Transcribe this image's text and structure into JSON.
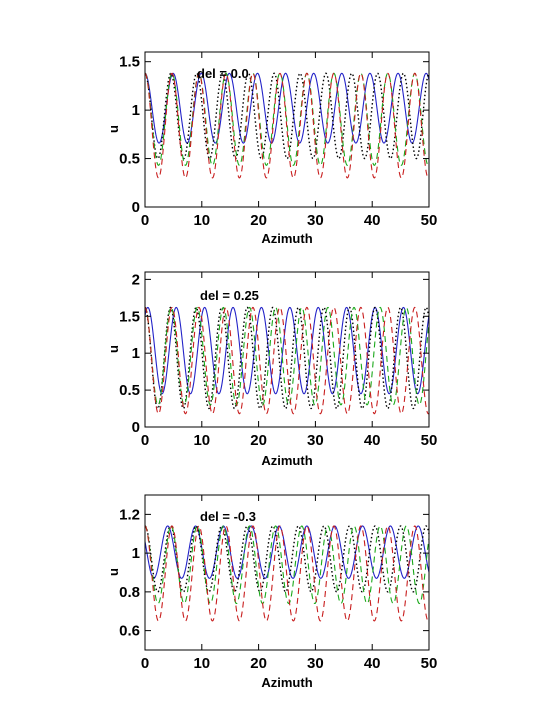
{
  "chart_data": [
    {
      "type": "line",
      "annotation": "del = 0.0",
      "xlabel": "Azimuth",
      "ylabel": "u",
      "xlim": [
        0,
        50
      ],
      "ylim": [
        0,
        1.6
      ],
      "xticks": [
        0,
        10,
        20,
        30,
        40,
        50
      ],
      "xtick_labels": [
        "0",
        "10",
        "20",
        "30",
        "40",
        "50"
      ],
      "yticks": [
        0,
        0.5,
        1,
        1.5
      ],
      "ytick_labels": [
        "0",
        "0.5",
        "1",
        "1.5"
      ],
      "grid": false,
      "legend": "none",
      "series": [
        {
          "style": "solid",
          "color": "#2323c8",
          "period": 4.95,
          "peak_x": 0.0,
          "min": 0.66,
          "max": 1.38
        },
        {
          "style": "dotted",
          "color": "#000000",
          "period": 4.55,
          "peak_x": 0.0,
          "min": 0.5,
          "max": 1.38
        },
        {
          "style": "dashed",
          "color": "#1aa81a",
          "period": 4.75,
          "peak_x": 0.0,
          "min": 0.43,
          "max": 1.38
        },
        {
          "style": "dashed",
          "color": "#c81e1e",
          "period": 4.75,
          "peak_x": 0.0,
          "min": 0.3,
          "max": 1.38
        }
      ]
    },
    {
      "type": "line",
      "annotation": "del = 0.25",
      "xlabel": "Azimuth",
      "ylabel": "u",
      "xlim": [
        0,
        50
      ],
      "ylim": [
        0,
        2.1
      ],
      "xticks": [
        0,
        10,
        20,
        30,
        40,
        50
      ],
      "xtick_labels": [
        "0",
        "10",
        "20",
        "30",
        "40",
        "50"
      ],
      "yticks": [
        0,
        0.5,
        1,
        1.5,
        2
      ],
      "ytick_labels": [
        "0",
        "0.5",
        "1",
        "1.5",
        "2"
      ],
      "grid": false,
      "legend": "none",
      "series": [
        {
          "style": "solid",
          "color": "#2323c8",
          "period": 5.0,
          "peak_x": 0.5,
          "min": 0.45,
          "max": 1.62
        },
        {
          "style": "dotted",
          "color": "#000000",
          "period": 4.5,
          "peak_x": 0.0,
          "min": 0.25,
          "max": 1.62
        },
        {
          "style": "dashed",
          "color": "#1aa81a",
          "period": 4.6,
          "peak_x": 0.0,
          "min": 0.3,
          "max": 1.62
        },
        {
          "style": "dashed",
          "color": "#c81e1e",
          "period": 4.75,
          "peak_x": 0.0,
          "min": 0.18,
          "max": 1.62
        }
      ]
    },
    {
      "type": "line",
      "annotation": "del = -0.3",
      "xlabel": "Azimuth",
      "ylabel": "u",
      "xlim": [
        0,
        50
      ],
      "ylim": [
        0.5,
        1.3
      ],
      "xticks": [
        0,
        10,
        20,
        30,
        40,
        50
      ],
      "xtick_labels": [
        "0",
        "10",
        "20",
        "30",
        "40",
        "50"
      ],
      "yticks": [
        0.6,
        0.8,
        1,
        1.2
      ],
      "ytick_labels": [
        "0.6",
        "0.8",
        "1",
        "1.2"
      ],
      "grid": false,
      "legend": "none",
      "series": [
        {
          "style": "solid",
          "color": "#2323c8",
          "period": 4.9,
          "peak_x": 4.0,
          "min": 0.87,
          "max": 1.14
        },
        {
          "style": "dotted",
          "color": "#000000",
          "period": 4.5,
          "peak_x": 0.0,
          "min": 0.8,
          "max": 1.14
        },
        {
          "style": "dashed",
          "color": "#1aa81a",
          "period": 4.6,
          "peak_x": 0.0,
          "min": 0.74,
          "max": 1.14
        },
        {
          "style": "dashed",
          "color": "#c81e1e",
          "period": 4.75,
          "peak_x": 0.0,
          "min": 0.65,
          "max": 1.14
        }
      ]
    }
  ]
}
